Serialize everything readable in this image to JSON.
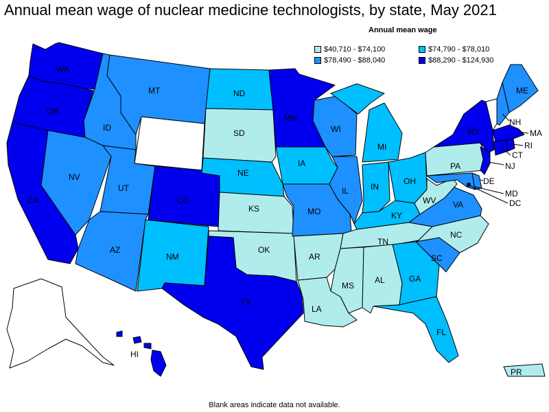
{
  "title": "Annual mean wage of nuclear medicine technologists, by state, May 2021",
  "legend": {
    "title": "Annual mean wage",
    "items": [
      {
        "label": "$40,710 - $74,100",
        "color": "#b0ecec"
      },
      {
        "label": "$74,790 - $78,010",
        "color": "#00bfff"
      },
      {
        "label": "$78,490 - $88,040",
        "color": "#1e90ff"
      },
      {
        "label": "$88,290 - $124,930",
        "color": "#0000ee"
      }
    ]
  },
  "footnote": "Blank areas indicate data not available.",
  "colors": {
    "tier1": "#b0ecec",
    "tier2": "#00bfff",
    "tier3": "#1e90ff",
    "tier4": "#0000ee",
    "no_data": "#ffffff"
  },
  "states": {
    "WA": "WA",
    "OR": "OR",
    "CA": "CA",
    "ID": "ID",
    "NV": "NV",
    "MT": "MT",
    "WY": "",
    "UT": "UT",
    "AZ": "AZ",
    "CO": "CO",
    "NM": "NM",
    "ND": "ND",
    "SD": "SD",
    "NE": "NE",
    "KS": "KS",
    "OK": "OK",
    "TX": "TX",
    "MN": "MN",
    "IA": "IA",
    "MO": "MO",
    "AR": "AR",
    "LA": "LA",
    "WI": "WI",
    "IL": "IL",
    "MS": "MS",
    "MI": "MI",
    "IN": "IN",
    "KY": "KY",
    "TN": "TN",
    "AL": "AL",
    "OH": "OH",
    "GA": "GA",
    "FL": "FL",
    "SC": "SC",
    "NC": "NC",
    "VA": "VA",
    "WV": "WV",
    "PA": "PA",
    "NY": "NY",
    "VT": "",
    "NH": "NH",
    "ME": "ME",
    "MA": "MA",
    "RI": "RI",
    "CT": "CT",
    "NJ": "NJ",
    "DE": "DE",
    "MD": "MD",
    "DC": "DC",
    "HI": "HI",
    "AK": "",
    "PR": "PR"
  }
}
